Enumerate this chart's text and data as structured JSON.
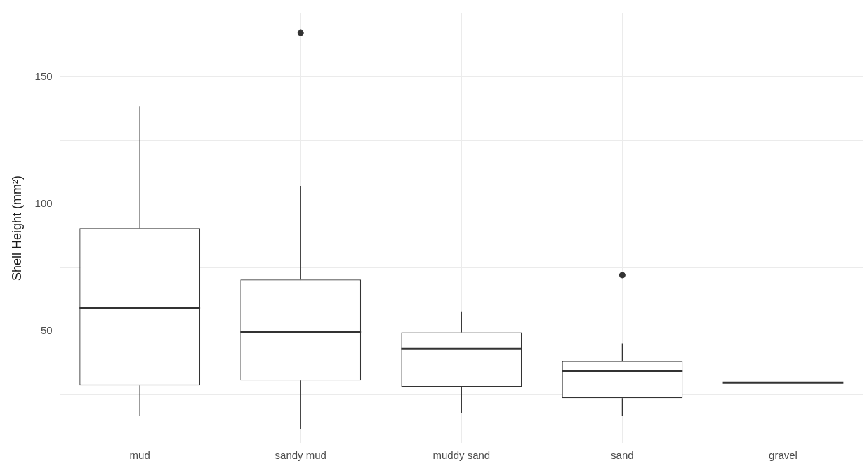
{
  "chart_data": {
    "type": "box",
    "ylabel": "Shell Height (mm²)",
    "categories": [
      "mud",
      "sandy mud",
      "muddy sand",
      "sand",
      "gravel"
    ],
    "boxes": [
      {
        "low": 16.5,
        "q1": 28.6,
        "median": 59.1,
        "q3": 90.4,
        "high": 138.5
      },
      {
        "low": 11.3,
        "q1": 30.5,
        "median": 49.7,
        "q3": 70.3,
        "high": 107.1,
        "outliers": [
          167.3
        ]
      },
      {
        "low": 17.6,
        "q1": 28.0,
        "median": 42.9,
        "q3": 49.5,
        "high": 57.7
      },
      {
        "low": 16.5,
        "q1": 23.6,
        "median": 34.3,
        "q3": 38.2,
        "high": 45.1,
        "outliers": [
          72.0
        ]
      },
      {
        "low": 29.7,
        "q1": 29.7,
        "median": 29.7,
        "q3": 29.7,
        "high": 29.7
      }
    ],
    "color": "#333333",
    "ylim": [
      6,
      175
    ],
    "yticks": [
      {
        "value": 25,
        "label": null
      },
      50,
      {
        "value": 75,
        "label": null
      },
      100,
      {
        "value": 125,
        "label": null
      },
      150
    ],
    "grid": true,
    "legend": false,
    "marker": "circle"
  }
}
